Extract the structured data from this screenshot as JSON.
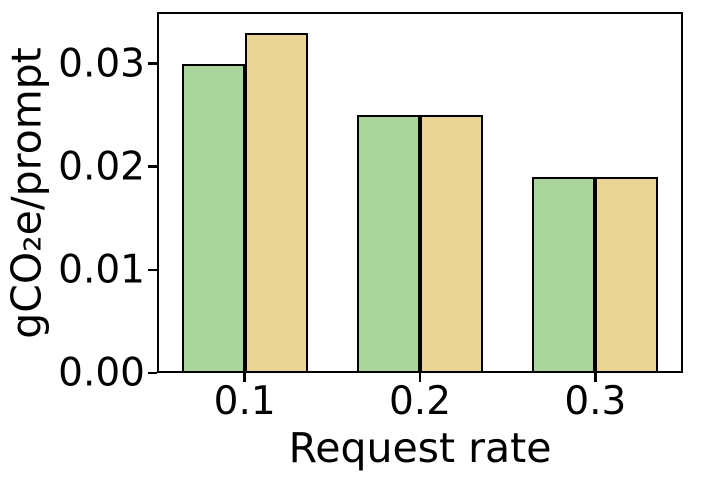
{
  "chart_data": {
    "type": "bar",
    "title": "",
    "xlabel": "Request rate",
    "ylabel": "gCO₂e/prompt",
    "categories": [
      "0.1",
      "0.2",
      "0.3"
    ],
    "series": [
      {
        "name": "series-green",
        "color": "#abd69b",
        "values": [
          0.03,
          0.025,
          0.019
        ]
      },
      {
        "name": "series-tan",
        "color": "#e9d697",
        "values": [
          0.033,
          0.025,
          0.019
        ]
      }
    ],
    "ylim": [
      0,
      0.035
    ],
    "yticks": [
      0.0,
      0.01,
      0.02,
      0.03
    ],
    "ytick_decimals": 2,
    "bar_edge_color": "#000000",
    "axis_color": "#000000",
    "background_color": "#ffffff",
    "grid": false,
    "legend": "none"
  }
}
